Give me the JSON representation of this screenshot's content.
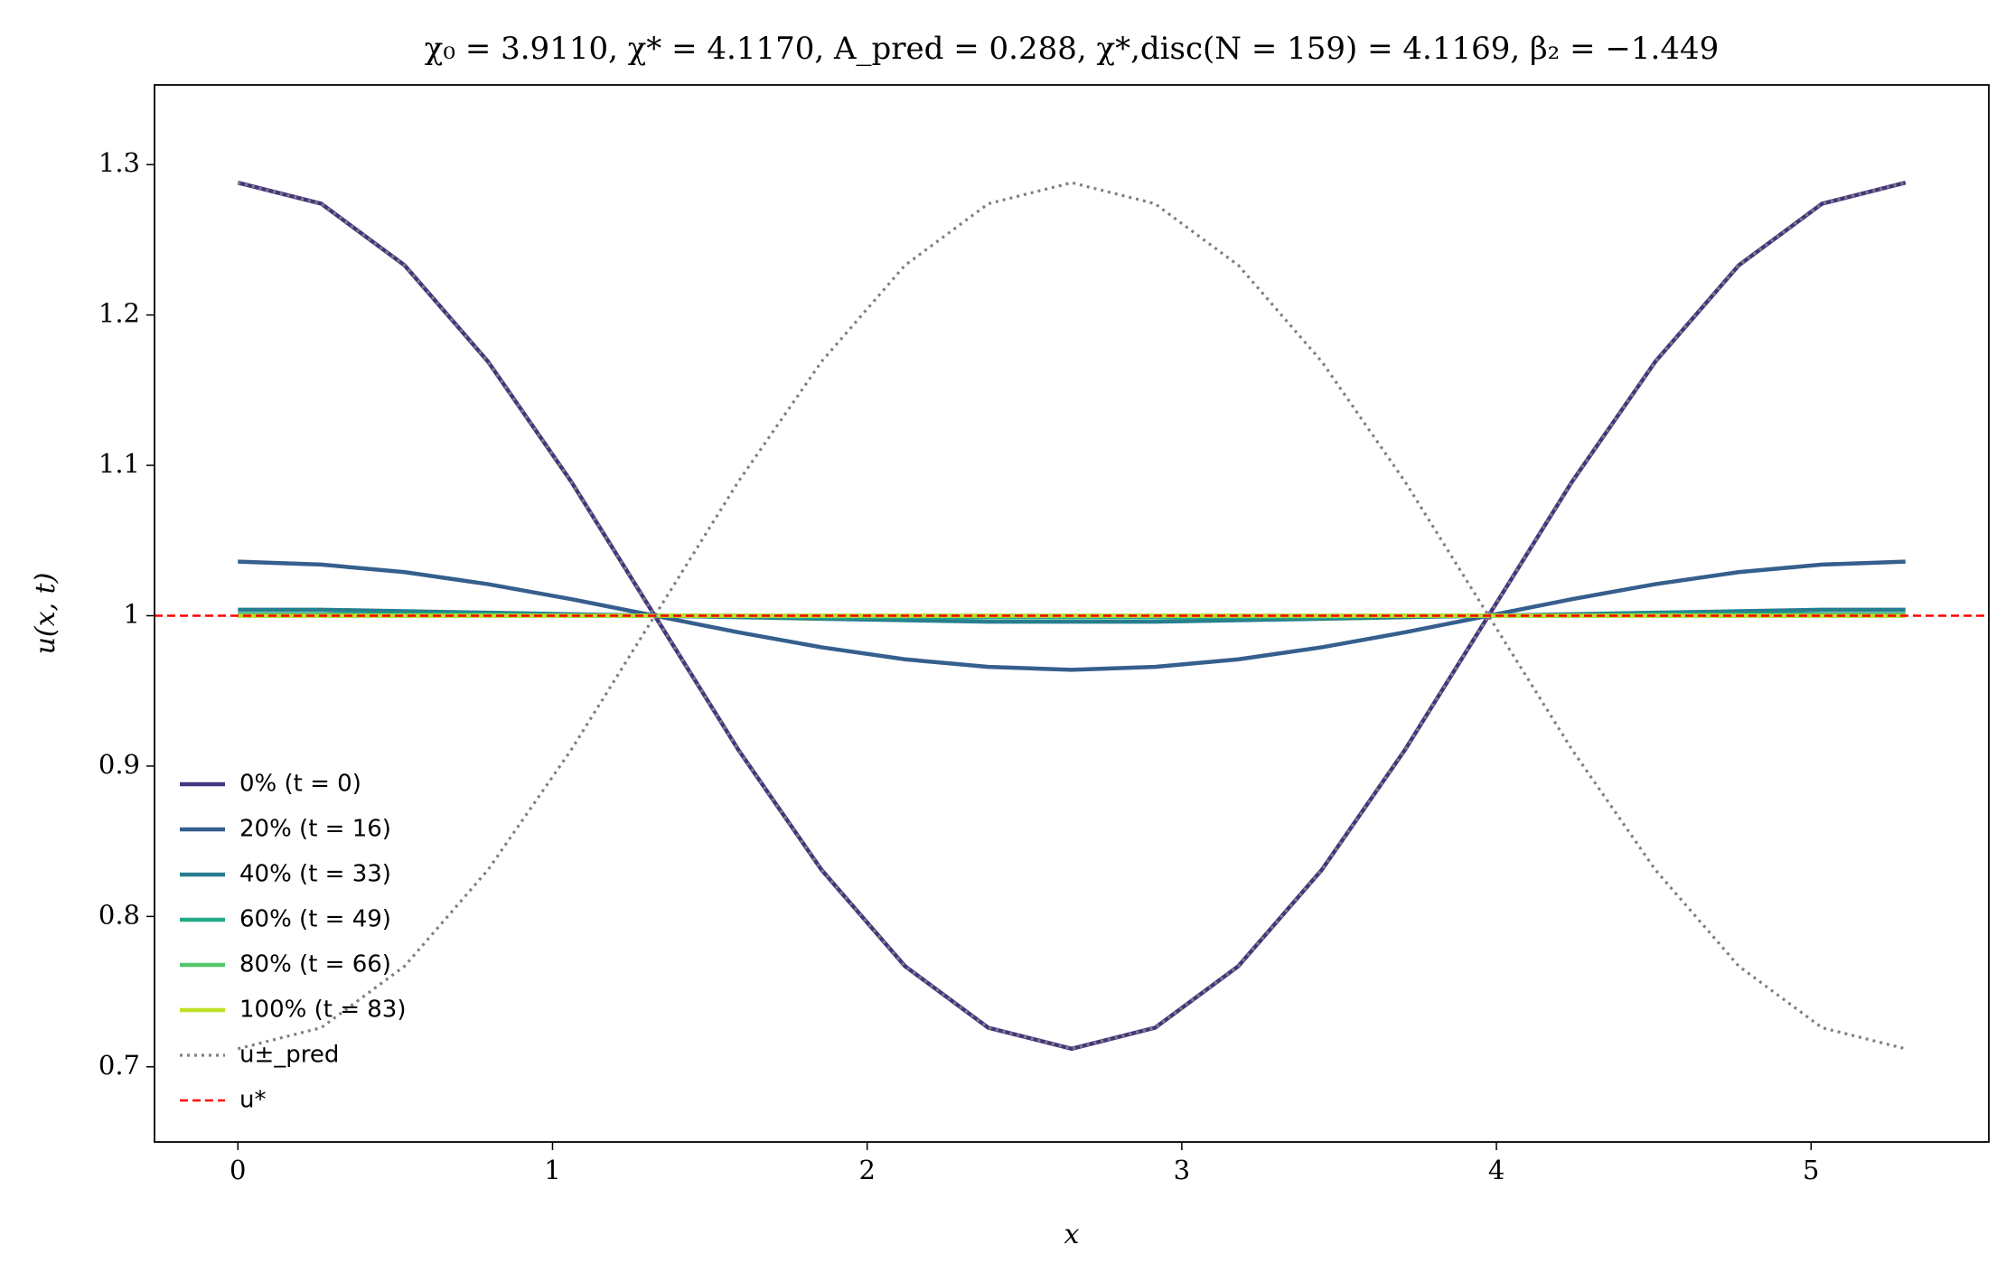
{
  "chart_data": {
    "type": "line",
    "title": "χ₀ = 3.9110,  χ* = 4.1170,  A_pred = 0.288,  χ*,disc(N = 159) = 4.1169,  β₂ = −1.449",
    "x_label": "x",
    "y_label": "u(x, t)",
    "x": [
      0,
      0.265,
      0.53,
      0.795,
      1.06,
      1.325,
      1.59,
      1.855,
      2.12,
      2.385,
      2.65,
      2.915,
      3.18,
      3.445,
      3.71,
      3.975,
      4.24,
      4.505,
      4.77,
      5.035,
      5.3
    ],
    "series": [
      {
        "name": "0% (t = 0)",
        "color": "#45337f",
        "values": [
          1.288,
          1.274,
          1.233,
          1.169,
          1.089,
          1.0,
          0.911,
          0.831,
          0.767,
          0.726,
          0.712,
          0.726,
          0.767,
          0.831,
          0.911,
          1.0,
          1.089,
          1.169,
          1.233,
          1.274,
          1.288
        ]
      },
      {
        "name": "20% (t = 16)",
        "color": "#355f8d",
        "values": [
          1.036,
          1.034,
          1.029,
          1.021,
          1.011,
          1.0,
          0.989,
          0.979,
          0.971,
          0.966,
          0.964,
          0.966,
          0.971,
          0.979,
          0.989,
          1.0,
          1.011,
          1.021,
          1.029,
          1.034,
          1.036
        ]
      },
      {
        "name": "40% (t = 33)",
        "color": "#277f8e",
        "values": [
          1.004,
          1.004,
          1.003,
          1.002,
          1.001,
          1.0,
          0.999,
          0.998,
          0.997,
          0.996,
          0.996,
          0.996,
          0.997,
          0.998,
          0.999,
          1.0,
          1.001,
          1.002,
          1.003,
          1.004,
          1.004
        ]
      },
      {
        "name": "60% (t = 49)",
        "color": "#22a884",
        "values": [
          1.001,
          1.001,
          1.001,
          1.001,
          1.0,
          1.0,
          1.0,
          0.999,
          0.999,
          0.999,
          0.999,
          0.999,
          0.999,
          0.999,
          1.0,
          1.0,
          1.0,
          1.001,
          1.001,
          1.001,
          1.001
        ]
      },
      {
        "name": "80% (t = 66)",
        "color": "#54c568",
        "values": [
          1.0,
          1.0,
          1.0,
          1.0,
          1.0,
          1.0,
          1.0,
          1.0,
          1.0,
          1.0,
          1.0,
          1.0,
          1.0,
          1.0,
          1.0,
          1.0,
          1.0,
          1.0,
          1.0,
          1.0,
          1.0
        ]
      },
      {
        "name": "100% (t = 83)",
        "color": "#bddf26",
        "values": [
          1.0,
          1.0,
          1.0,
          1.0,
          1.0,
          1.0,
          1.0,
          1.0,
          1.0,
          1.0,
          1.0,
          1.0,
          1.0,
          1.0,
          1.0,
          1.0,
          1.0,
          1.0,
          1.0,
          1.0,
          1.0
        ]
      }
    ],
    "bounds": {
      "name": "u±_pred",
      "color": "#808080",
      "upper": [
        0.712,
        0.726,
        0.767,
        0.831,
        0.911,
        1.0,
        1.089,
        1.169,
        1.233,
        1.274,
        1.288,
        1.274,
        1.233,
        1.169,
        1.089,
        1.0,
        0.911,
        0.831,
        0.767,
        0.726,
        0.712
      ],
      "lower": [
        1.288,
        1.274,
        1.233,
        1.169,
        1.089,
        1.0,
        0.911,
        0.831,
        0.767,
        0.726,
        0.712,
        0.726,
        0.767,
        0.831,
        0.911,
        1.0,
        1.089,
        1.169,
        1.233,
        1.274,
        1.288
      ]
    },
    "reference_line": {
      "name": "u*",
      "value": 1.0,
      "color": "#ff0000"
    },
    "xlim": [
      -0.265,
      5.565
    ],
    "ylim": [
      0.65,
      1.353
    ],
    "xticks": [
      0,
      1,
      2,
      3,
      4,
      5
    ],
    "yticks": [
      0.7,
      0.8,
      0.9,
      1.0,
      1.1,
      1.2,
      1.3
    ],
    "legend_loc": "lower left",
    "grid": false
  }
}
